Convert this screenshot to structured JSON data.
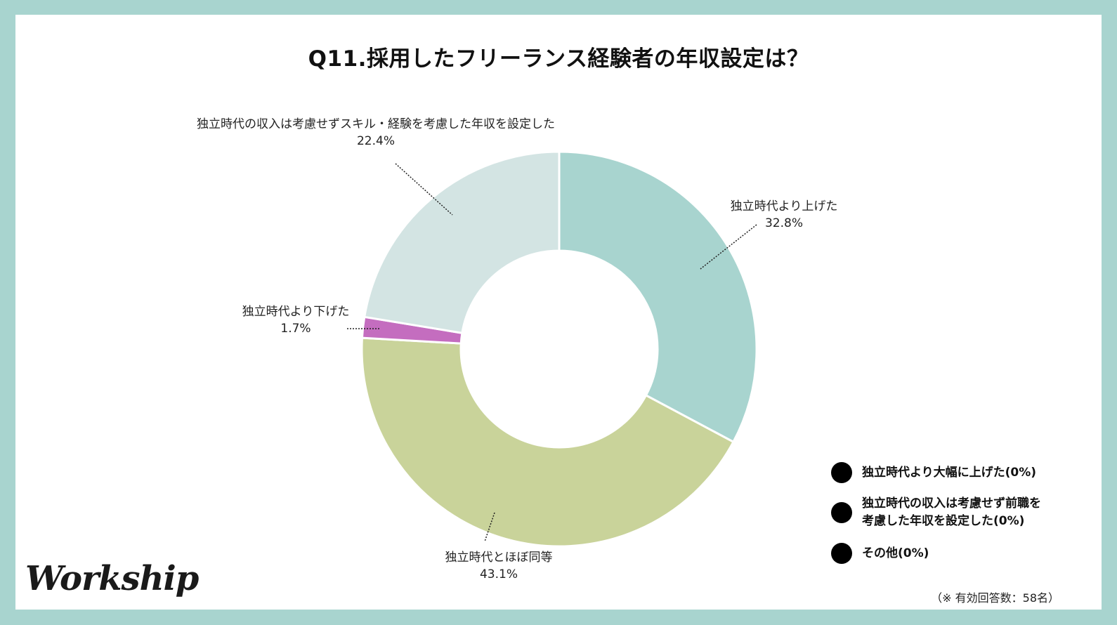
{
  "chart_data": {
    "type": "pie",
    "variant": "donut",
    "title": "Q11.採用したフリーランス経験者の年収設定は？",
    "slices": [
      {
        "label": "独立時代より上げた",
        "value": 32.8,
        "value_label": "32.8%",
        "color": "#a8d4cf"
      },
      {
        "label": "独立時代とほぼ同等",
        "value": 43.1,
        "value_label": "43.1%",
        "color": "#c9d39a"
      },
      {
        "label": "独立時代より下げた",
        "value": 1.7,
        "value_label": "1.7%",
        "color": "#c46dbf"
      },
      {
        "label": "独立時代の収入は考慮せずスキル・経験を考慮した年収を設定した",
        "value": 22.4,
        "value_label": "22.4%",
        "color": "#d3e4e3"
      }
    ],
    "legend": [
      {
        "line1": "独立時代より大幅に上げた(0%)",
        "line2": ""
      },
      {
        "line1": "独立時代の収入は考慮せず前職を",
        "line2": "考慮した年収を設定した(0%)"
      },
      {
        "line1": "その他(0%)",
        "line2": ""
      }
    ],
    "legend_placement": "bottom-right",
    "note": "（※ 有効回答数：58名）"
  },
  "brand": {
    "logo_text": "Workship",
    "frame_color": "#a8d4cf"
  }
}
